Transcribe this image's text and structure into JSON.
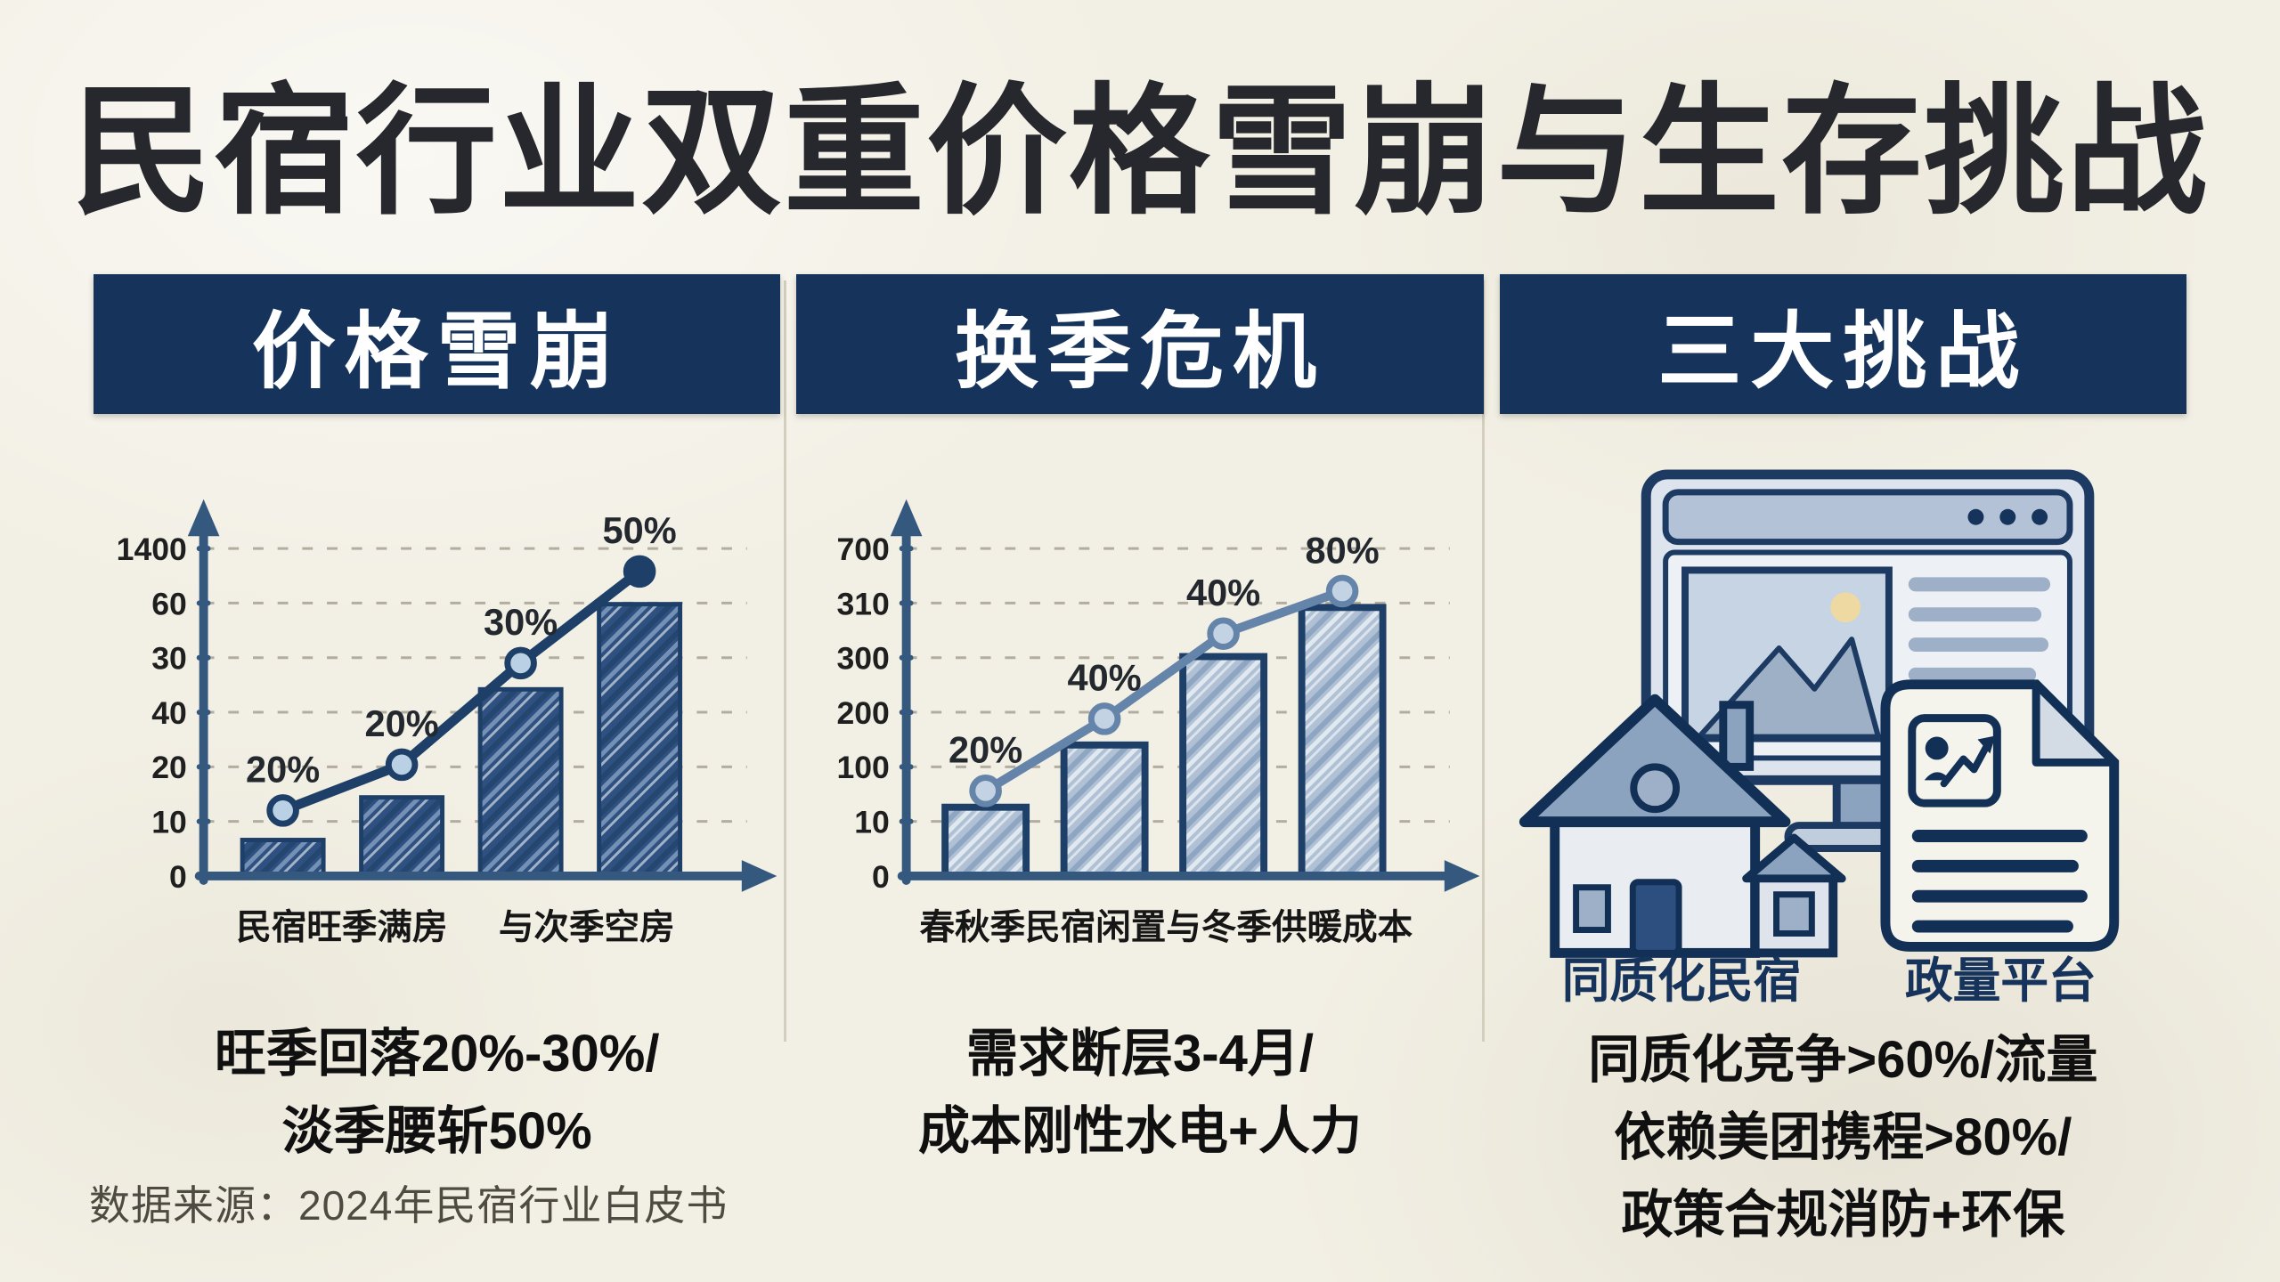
{
  "title": "民宿行业双重价格雪崩与生存挑战",
  "source_note": "数据来源：2024年民宿行业白皮书",
  "colors": {
    "background": "#f2efe4",
    "header_bg": "#16335c",
    "header_text": "#ffffff",
    "title_text": "#27282d",
    "caption_text": "#101010",
    "source_text": "#4e4b42",
    "axis": "#35587f",
    "gridline": "#a8a294",
    "divider": "#d3cebe",
    "icon_stroke": "#123055",
    "icon_fill_light": "#dde4ee",
    "icon_fill_mid": "#8ca3c0",
    "sun": "#eed9a2"
  },
  "sections": [
    {
      "id": "price-collapse",
      "header": "价格雪崩",
      "caption_lines": [
        "旺季回落20%-30%/",
        "淡季腰斩50%"
      ]
    },
    {
      "id": "season-crisis",
      "header": "换季危机",
      "caption_lines": [
        "需求断层3-4月/",
        "成本刚性水电+人力"
      ]
    },
    {
      "id": "three-challenges",
      "header": "三大挑战",
      "caption_lines": [
        "同质化竞争>60%/流量",
        "依赖美团携程>80%/",
        "政策合规消防+环保"
      ],
      "icons": [
        "monitor-browser-icon",
        "house-icon",
        "document-report-icon"
      ],
      "icon_labels": [
        "同质化民宿",
        "政量平台"
      ]
    }
  ],
  "chart_data": [
    {
      "id": "price-collapse-chart",
      "type": "bar",
      "title": "价格雪崩",
      "grid": "dashed-horizontal",
      "legend": "none",
      "y_tick_labels_top_to_bottom": [
        "1400",
        "60",
        "30",
        "40",
        "20",
        "10",
        "0"
      ],
      "x_axis_labels": [
        "民宿旺季满房",
        "与次季空房"
      ],
      "series": [
        {
          "name": "bars",
          "type": "bar",
          "values_pct_of_plot_height": [
            11,
            24,
            57,
            83
          ]
        },
        {
          "name": "line",
          "type": "line",
          "values_pct_of_plot_height": [
            20,
            34,
            65,
            93
          ],
          "point_labels": [
            "20%",
            "20%",
            "30%",
            "50%"
          ]
        }
      ],
      "style": {
        "bar_base": "#2e5181",
        "bar_streak_light": "#7b97b9",
        "bar_streak_dark": "#24466f",
        "bar_stroke": "#1d3f68",
        "bar_stroke_w": 5,
        "line_color": "#1e4068",
        "line_w": 11,
        "point_center": "#bad0e4",
        "last_point_solid": true
      }
    },
    {
      "id": "season-crisis-chart",
      "type": "bar",
      "title": "换季危机",
      "grid": "dashed-horizontal",
      "legend": "none",
      "y_tick_labels_top_to_bottom": [
        "700",
        "310",
        "300",
        "200",
        "100",
        "10",
        "0"
      ],
      "x_axis_labels": [
        "春秋季民宿闲置与冬季供暖成本"
      ],
      "series": [
        {
          "name": "bars",
          "type": "bar",
          "values_pct_of_plot_height": [
            21,
            40,
            67,
            82
          ]
        },
        {
          "name": "line",
          "type": "line",
          "values_pct_of_plot_height": [
            26,
            48,
            74,
            87
          ],
          "point_labels": [
            "20%",
            "40%",
            "40%",
            "80%"
          ]
        }
      ],
      "style": {
        "bar_base": "#b0c1d5",
        "bar_streak_light": "#e6ecf3",
        "bar_streak_dark": "#8ea6c2",
        "bar_stroke": "#1e4068",
        "bar_stroke_w": 8,
        "line_color": "#6584a9",
        "line_w": 10,
        "point_center": "#c3d3e4",
        "last_point_solid": false
      }
    }
  ]
}
